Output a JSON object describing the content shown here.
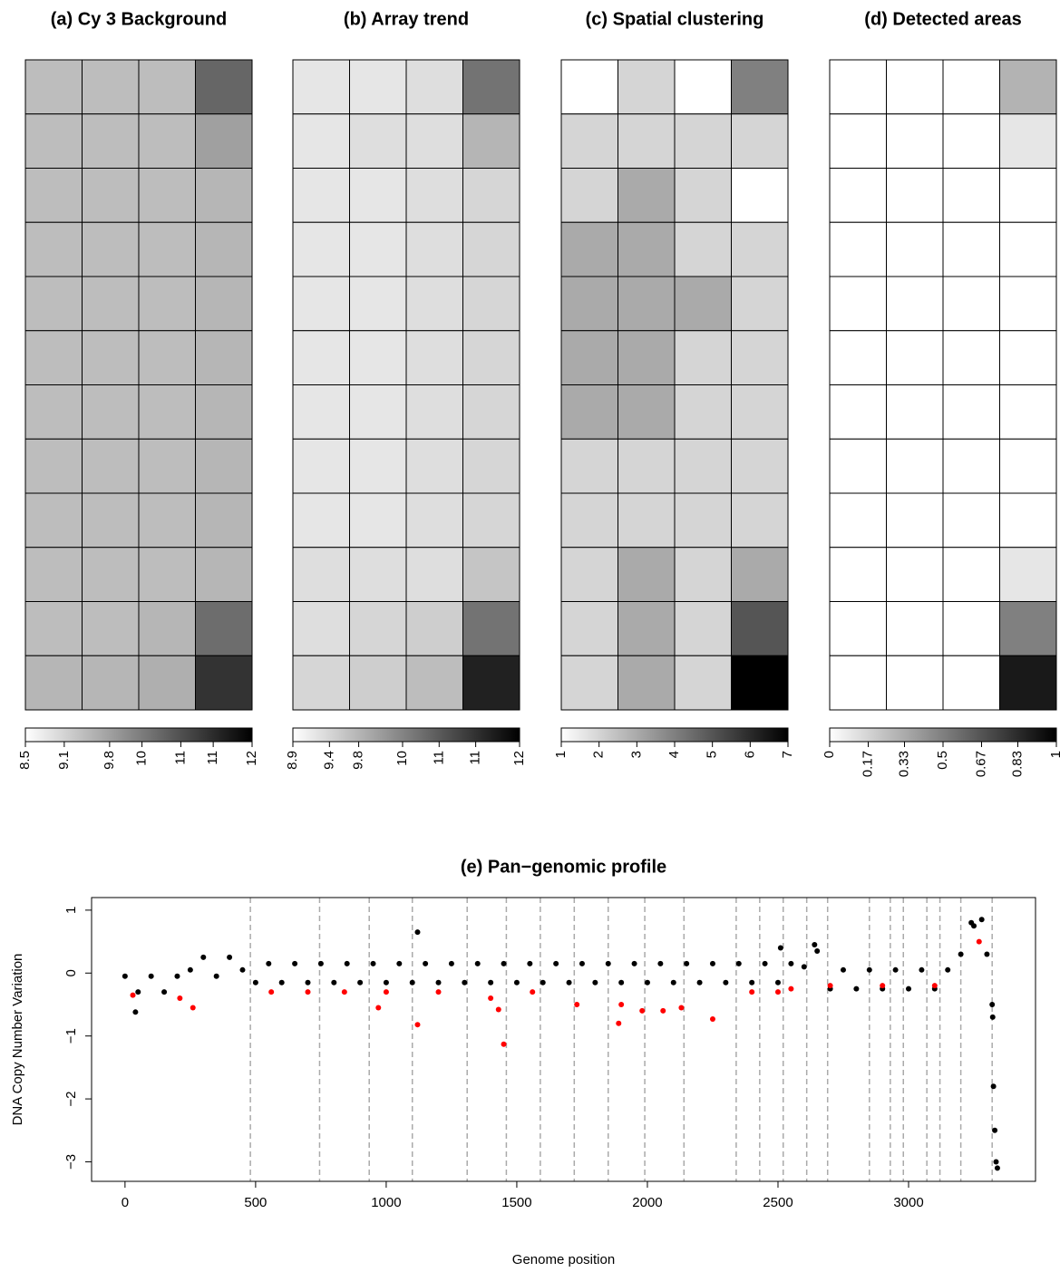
{
  "chart_data": [
    {
      "type": "heatmap",
      "title": "(a) Cy 3 Background",
      "values": [
        [
          9.4,
          9.4,
          9.4,
          10.6
        ],
        [
          9.4,
          9.4,
          9.4,
          9.8
        ],
        [
          9.4,
          9.4,
          9.4,
          9.5
        ],
        [
          9.4,
          9.4,
          9.4,
          9.5
        ],
        [
          9.4,
          9.4,
          9.4,
          9.5
        ],
        [
          9.4,
          9.4,
          9.4,
          9.5
        ],
        [
          9.4,
          9.4,
          9.4,
          9.5
        ],
        [
          9.4,
          9.4,
          9.4,
          9.5
        ],
        [
          9.4,
          9.4,
          9.4,
          9.5
        ],
        [
          9.4,
          9.4,
          9.4,
          9.5
        ],
        [
          9.4,
          9.4,
          9.5,
          10.5
        ],
        [
          9.5,
          9.5,
          9.6,
          11.3
        ]
      ],
      "clim": [
        8.5,
        12
      ],
      "cticks": [
        8.5,
        9.1,
        9.8,
        {
          "value": 10.3,
          "label": "10"
        },
        {
          "value": 10.9,
          "label": "11"
        },
        {
          "value": 11.4,
          "label": "11"
        },
        12
      ]
    },
    {
      "type": "heatmap",
      "title": "(b) Array trend",
      "values": [
        [
          9.2,
          9.2,
          9.3,
          10.6
        ],
        [
          9.2,
          9.3,
          9.3,
          9.8
        ],
        [
          9.2,
          9.2,
          9.3,
          9.4
        ],
        [
          9.2,
          9.2,
          9.3,
          9.4
        ],
        [
          9.2,
          9.2,
          9.3,
          9.4
        ],
        [
          9.2,
          9.2,
          9.3,
          9.4
        ],
        [
          9.2,
          9.2,
          9.3,
          9.4
        ],
        [
          9.2,
          9.2,
          9.3,
          9.4
        ],
        [
          9.2,
          9.2,
          9.3,
          9.4
        ],
        [
          9.3,
          9.3,
          9.3,
          9.6
        ],
        [
          9.3,
          9.4,
          9.5,
          10.6
        ],
        [
          9.4,
          9.5,
          9.7,
          11.6
        ]
      ],
      "clim": [
        8.9,
        12
      ],
      "cticks": [
        8.9,
        9.4,
        9.8,
        {
          "value": 10.4,
          "label": "10"
        },
        {
          "value": 10.9,
          "label": "11"
        },
        {
          "value": 11.4,
          "label": "11"
        },
        12
      ]
    },
    {
      "type": "heatmap",
      "title": "(c) Spatial clustering",
      "values": [
        [
          1,
          2,
          1,
          4
        ],
        [
          2,
          2,
          2,
          2
        ],
        [
          2,
          3,
          2,
          1
        ],
        [
          3,
          3,
          2,
          2
        ],
        [
          3,
          3,
          3,
          2
        ],
        [
          3,
          3,
          2,
          2
        ],
        [
          3,
          3,
          2,
          2
        ],
        [
          2,
          2,
          2,
          2
        ],
        [
          2,
          2,
          2,
          2
        ],
        [
          2,
          3,
          2,
          3
        ],
        [
          2,
          3,
          2,
          5
        ],
        [
          2,
          3,
          2,
          7
        ]
      ],
      "clim": [
        1,
        7
      ],
      "cticks": [
        1,
        2,
        3,
        4,
        5,
        6,
        7
      ]
    },
    {
      "type": "heatmap",
      "title": "(d) Detected areas",
      "values": [
        [
          0,
          0,
          0,
          0.3
        ],
        [
          0,
          0,
          0,
          0.1
        ],
        [
          0,
          0,
          0,
          0
        ],
        [
          0,
          0,
          0,
          0
        ],
        [
          0,
          0,
          0,
          0
        ],
        [
          0,
          0,
          0,
          0
        ],
        [
          0,
          0,
          0,
          0
        ],
        [
          0,
          0,
          0,
          0
        ],
        [
          0,
          0,
          0,
          0
        ],
        [
          0,
          0,
          0,
          0.1
        ],
        [
          0,
          0,
          0,
          0.5
        ],
        [
          0,
          0,
          0,
          0.9
        ]
      ],
      "clim": [
        0,
        1
      ],
      "cticks": [
        0,
        0.17,
        0.33,
        0.5,
        0.67,
        0.83,
        1
      ]
    },
    {
      "type": "scatter",
      "title": "(e) Pan−genomic profile",
      "x_label": "Genome position",
      "y_label": "DNA Copy Number Variation",
      "xlim": [
        -128,
        3486
      ],
      "ylim": [
        -3.31,
        1.2
      ],
      "xticks": [
        0,
        500,
        1000,
        1500,
        2000,
        2500,
        3000
      ],
      "yticks": [
        {
          "value": -3,
          "label": "−3"
        },
        {
          "value": -2,
          "label": "−2"
        },
        {
          "value": -1,
          "label": "−1"
        },
        0,
        1
      ],
      "vlines": [
        480,
        745,
        935,
        1100,
        1310,
        1460,
        1590,
        1720,
        1850,
        1990,
        2140,
        2340,
        2430,
        2520,
        2610,
        2690,
        2850,
        2930,
        2980,
        3070,
        3120,
        3200,
        3320
      ],
      "series": [
        {
          "color": "#000000",
          "x": [
            0,
            50,
            100,
            150,
            200,
            250,
            300,
            350,
            400,
            450,
            500,
            550,
            600,
            650,
            700,
            750,
            800,
            850,
            900,
            950,
            1000,
            1050,
            1100,
            1150,
            1200,
            1250,
            1300,
            1350,
            1400,
            1450,
            1500,
            1550,
            1600,
            1650,
            1700,
            1750,
            1800,
            1850,
            1900,
            1950,
            2000,
            2050,
            2100,
            2150,
            2200,
            2250,
            2300,
            2350,
            2400,
            2450,
            2500,
            2550,
            2600,
            2650,
            2700,
            2750,
            2800,
            2850,
            2900,
            2950,
            3000,
            3050,
            3100,
            3150,
            3200,
            3250,
            3300,
            3320,
            3322,
            3325,
            3330,
            3335,
            3340,
            1120,
            2510,
            2640,
            3280,
            3240,
            40
          ],
          "values": [
            -0.05,
            -0.3,
            -0.05,
            -0.3,
            -0.05,
            0.05,
            0.25,
            -0.05,
            0.25,
            0.05,
            -0.15,
            0.15,
            -0.15,
            0.15,
            -0.15,
            0.15,
            -0.15,
            0.15,
            -0.15,
            0.15,
            -0.15,
            0.15,
            -0.15,
            0.15,
            -0.15,
            0.15,
            -0.15,
            0.15,
            -0.15,
            0.15,
            -0.15,
            0.15,
            -0.15,
            0.15,
            -0.15,
            0.15,
            -0.15,
            0.15,
            -0.15,
            0.15,
            -0.15,
            0.15,
            -0.15,
            0.15,
            -0.15,
            0.15,
            -0.15,
            0.15,
            -0.15,
            0.15,
            -0.15,
            0.15,
            0.1,
            0.35,
            -0.25,
            0.05,
            -0.25,
            0.05,
            -0.25,
            0.05,
            -0.25,
            0.05,
            -0.25,
            0.05,
            0.3,
            0.75,
            0.3,
            -0.5,
            -0.7,
            -1.8,
            -2.5,
            -3.0,
            -3.1,
            0.65,
            0.4,
            0.45,
            0.85,
            0.8,
            -0.62
          ]
        },
        {
          "color": "#ff0000",
          "x": [
            30,
            210,
            260,
            560,
            700,
            840,
            970,
            1000,
            1120,
            1200,
            1400,
            1430,
            1450,
            1560,
            1730,
            1890,
            1900,
            1980,
            2060,
            2130,
            2250,
            2400,
            2500,
            2550,
            2700,
            2900,
            3100,
            3270
          ],
          "values": [
            -0.35,
            -0.4,
            -0.55,
            -0.3,
            -0.3,
            -0.3,
            -0.55,
            -0.3,
            -0.82,
            -0.3,
            -0.4,
            -0.58,
            -1.13,
            -0.3,
            -0.5,
            -0.8,
            -0.5,
            -0.6,
            -0.6,
            -0.55,
            -0.73,
            -0.3,
            -0.3,
            -0.25,
            -0.2,
            -0.2,
            -0.2,
            0.5
          ]
        }
      ]
    }
  ]
}
